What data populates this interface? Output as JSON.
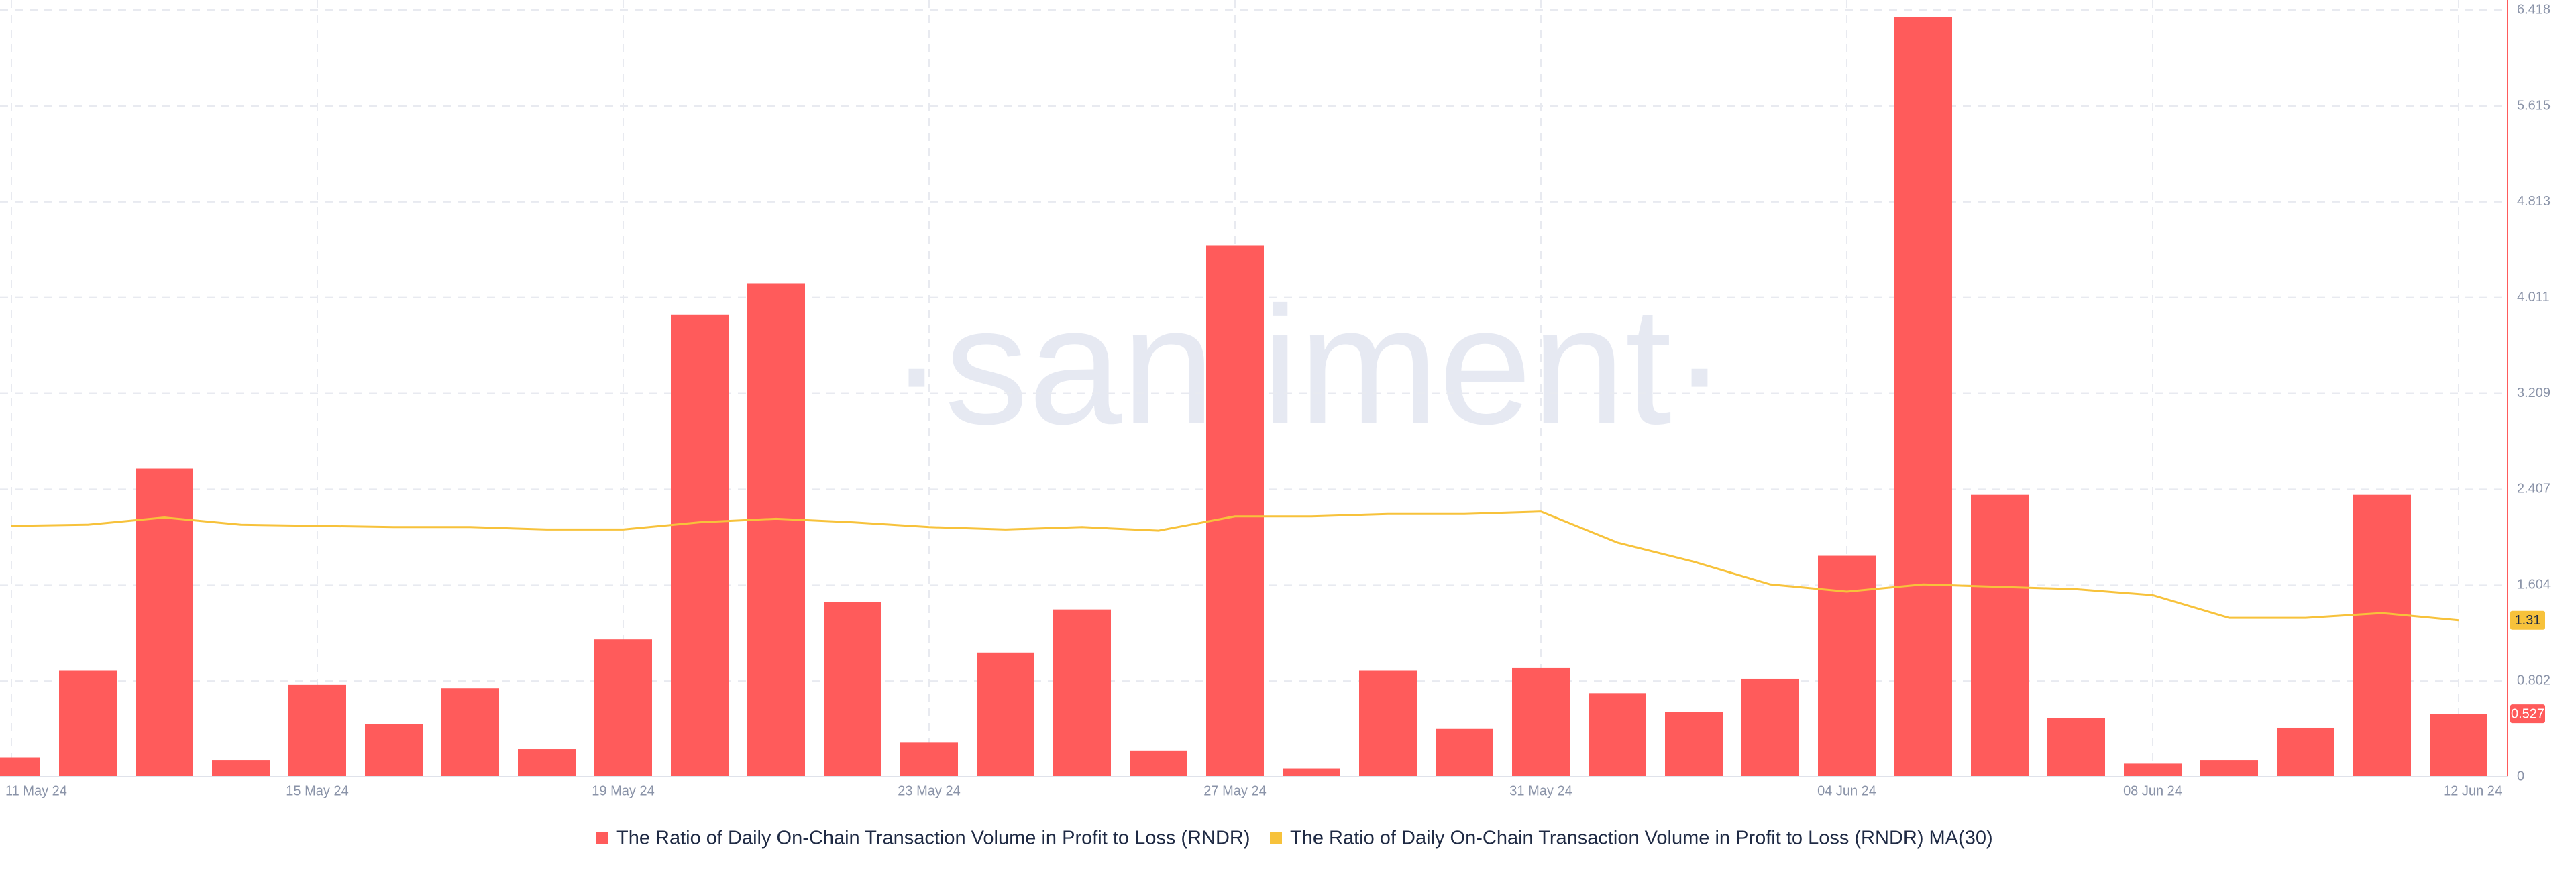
{
  "chart_data": {
    "type": "bar",
    "watermark": "·santiment·",
    "categories": [
      "11 May 24",
      null,
      null,
      null,
      "15 May 24",
      null,
      null,
      null,
      "19 May 24",
      null,
      null,
      null,
      "23 May 24",
      null,
      null,
      null,
      "27 May 24",
      null,
      null,
      null,
      "31 May 24",
      null,
      null,
      null,
      "04 Jun 24",
      null,
      null,
      null,
      "08 Jun 24",
      null,
      null,
      null,
      "12 Jun 24"
    ],
    "series": [
      {
        "name": "The Ratio of Daily On-Chain Transaction Volume in Profit to Loss (RNDR)",
        "type": "bar",
        "color": "#ff5b5b",
        "values": [
          0.16,
          0.89,
          2.58,
          0.14,
          0.77,
          0.44,
          0.74,
          0.23,
          1.15,
          3.87,
          4.13,
          1.46,
          0.29,
          1.04,
          1.4,
          0.22,
          4.45,
          0.07,
          0.89,
          0.4,
          0.91,
          0.7,
          0.54,
          0.82,
          1.85,
          6.36,
          2.36,
          0.49,
          0.11,
          0.14,
          0.41,
          2.36,
          0.527
        ]
      },
      {
        "name": "The Ratio of Daily On-Chain Transaction Volume in Profit to Loss (RNDR) MA(30)",
        "type": "line",
        "color": "#f7c23b",
        "values": [
          2.1,
          2.11,
          2.17,
          2.11,
          2.1,
          2.09,
          2.09,
          2.07,
          2.07,
          2.13,
          2.16,
          2.13,
          2.09,
          2.07,
          2.09,
          2.06,
          2.18,
          2.18,
          2.2,
          2.2,
          2.22,
          1.96,
          1.8,
          1.61,
          1.55,
          1.61,
          1.59,
          1.57,
          1.52,
          1.33,
          1.33,
          1.37,
          1.31
        ]
      }
    ],
    "ylim": [
      0,
      6.418
    ],
    "yticks": [
      0,
      0.802,
      1.604,
      2.407,
      3.209,
      4.011,
      4.813,
      5.615,
      6.418
    ],
    "grid": true
  }
}
